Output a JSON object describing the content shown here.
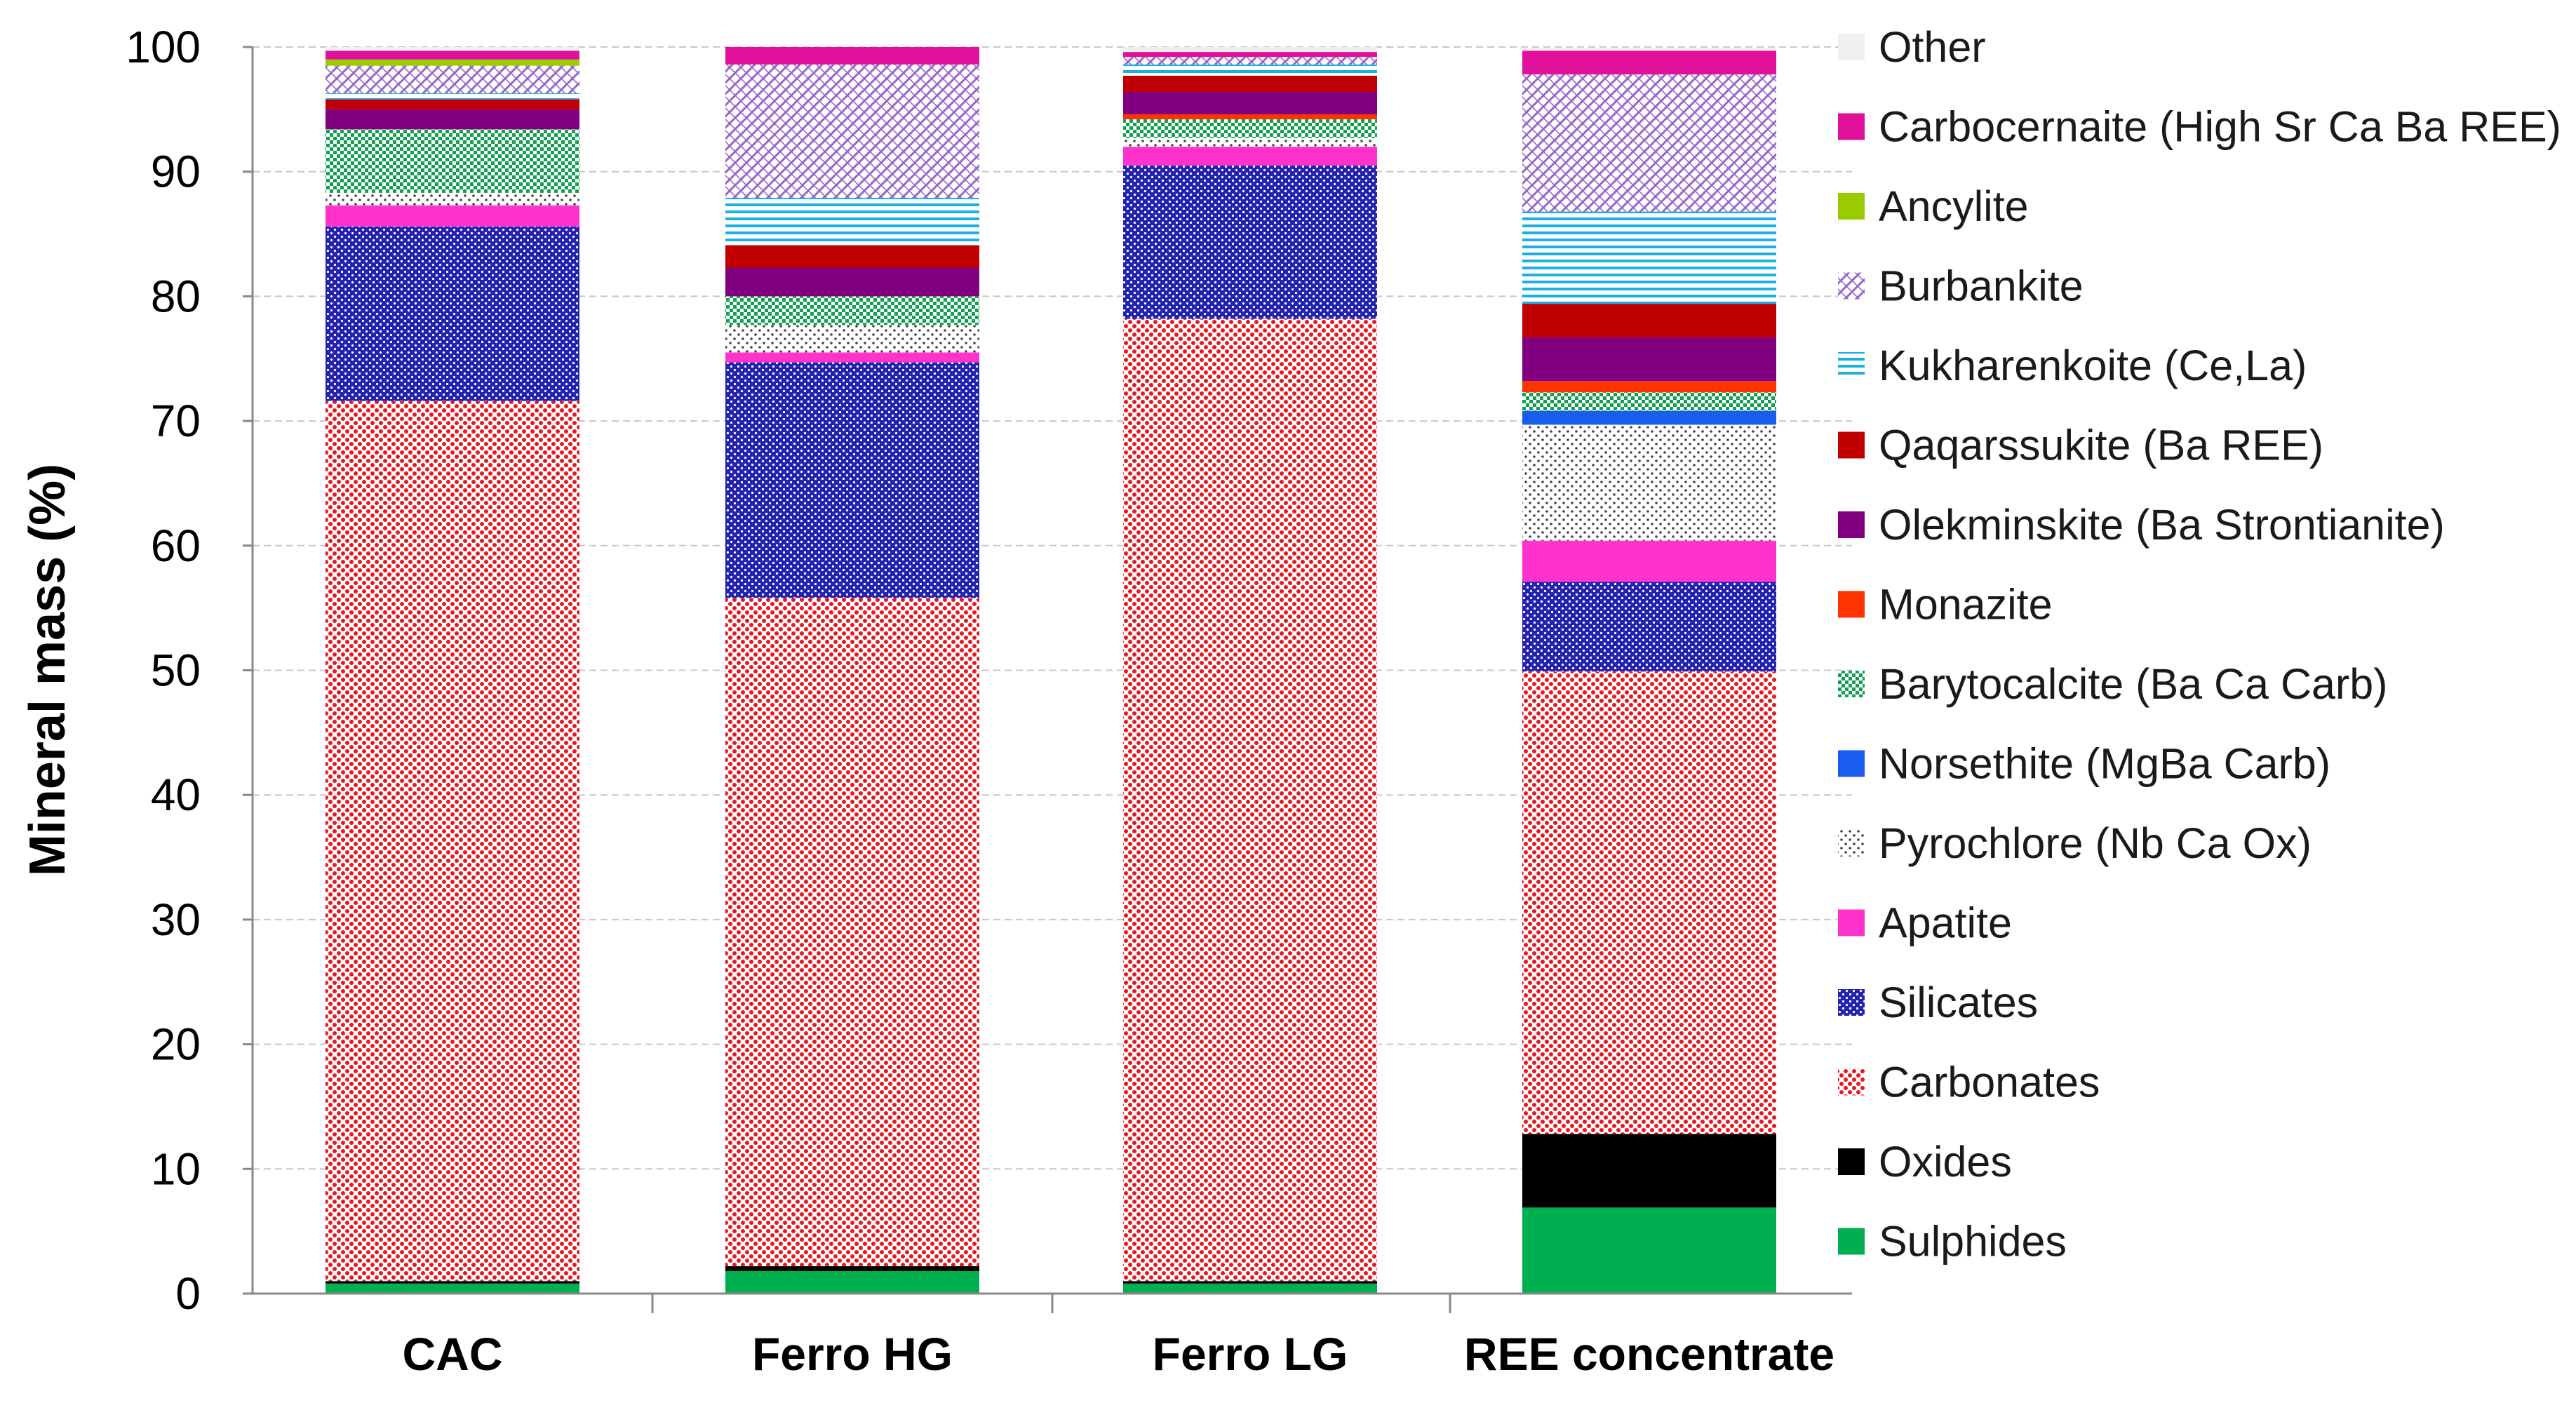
{
  "chart_data": {
    "type": "stacked-bar",
    "title": "",
    "xlabel": "",
    "ylabel": "Mineral mass (%)",
    "ylim": [
      0,
      100
    ],
    "yticks": [
      0,
      10,
      20,
      30,
      40,
      50,
      60,
      70,
      80,
      90,
      100
    ],
    "grid": true,
    "legend_position": "right",
    "categories": [
      "CAC",
      "Ferro HG",
      "Ferro LG",
      "REE concentrate"
    ],
    "series": [
      {
        "name": "Sulphides",
        "color": "#00b050",
        "pattern": "solid",
        "values": [
          0.8,
          1.8,
          0.8,
          6.9
        ]
      },
      {
        "name": "Oxides",
        "color": "#000000",
        "pattern": "solid",
        "values": [
          0.2,
          0.4,
          0.2,
          5.9
        ]
      },
      {
        "name": "Carbonates",
        "color": "#e8161f",
        "pattern": "dots",
        "values": [
          70.6,
          53.6,
          77.2,
          37.1
        ]
      },
      {
        "name": "Silicates",
        "color": "#2323b0",
        "pattern": "weave",
        "values": [
          14.0,
          18.9,
          12.3,
          7.2
        ]
      },
      {
        "name": "Apatite",
        "color": "#ff33cc",
        "pattern": "solid",
        "values": [
          1.7,
          0.8,
          1.5,
          3.3
        ]
      },
      {
        "name": "Pyrochlore (Nb Ca Ox)",
        "color": "#777777",
        "pattern": "sparse-dots",
        "values": [
          1.0,
          2.2,
          0.7,
          9.3
        ]
      },
      {
        "name": "Norsethite (MgBa Carb)",
        "color": "#1a5cf0",
        "pattern": "solid",
        "values": [
          0.0,
          0.0,
          0.0,
          1.1
        ]
      },
      {
        "name": "Barytocalcite (Ba Ca Carb)",
        "color": "#10a050",
        "pattern": "checker",
        "values": [
          5.1,
          2.3,
          1.5,
          1.5
        ]
      },
      {
        "name": "Monazite",
        "color": "#ff3300",
        "pattern": "solid",
        "values": [
          0.0,
          0.0,
          0.4,
          0.9
        ]
      },
      {
        "name": "Olekminskite (Ba Strontianite)",
        "color": "#800080",
        "pattern": "solid",
        "values": [
          1.6,
          2.3,
          1.8,
          3.5
        ]
      },
      {
        "name": "Qaqarssukite (Ba REE)",
        "color": "#c00000",
        "pattern": "solid",
        "values": [
          0.8,
          1.8,
          1.3,
          2.7
        ]
      },
      {
        "name": "Kukharenkoite (Ce,La)",
        "color": "#1ab0e0",
        "pattern": "hlines",
        "values": [
          0.5,
          3.8,
          0.9,
          7.4
        ]
      },
      {
        "name": "Burbankite",
        "color": "#9966cc",
        "pattern": "crosshatch",
        "values": [
          2.2,
          10.7,
          0.6,
          11.0
        ]
      },
      {
        "name": "Ancylite",
        "color": "#99cc00",
        "pattern": "solid",
        "values": [
          0.5,
          0.0,
          0.0,
          0.0
        ]
      },
      {
        "name": "Carbocernaite (High Sr Ca Ba REE)",
        "color": "#e0109a",
        "pattern": "solid",
        "values": [
          0.7,
          1.4,
          0.4,
          1.9
        ]
      },
      {
        "name": "Other",
        "color": "#f0f0f0",
        "pattern": "solid",
        "values": [
          0.3,
          0.0,
          0.4,
          0.2
        ]
      }
    ]
  }
}
